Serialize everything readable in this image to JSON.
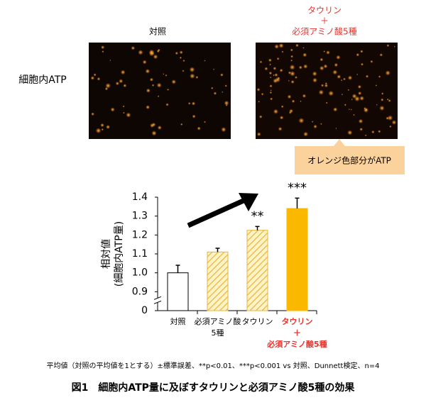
{
  "panel_label": "細胞内ATP",
  "images": [
    {
      "title": [
        "対照"
      ]
    },
    {
      "title": [
        "タウリン",
        "＋",
        "必須アミノ酸5種"
      ]
    }
  ],
  "callout": "オレンジ色部分がATP",
  "chart_data": {
    "type": "bar",
    "ylabel": [
      "相対値",
      "(細胞内ATP量)"
    ],
    "categories": [
      [
        "対照"
      ],
      [
        "必須アミノ酸",
        "5種"
      ],
      [
        "タウリン"
      ],
      [
        "タウリン",
        "＋",
        "必須アミノ酸5種"
      ]
    ],
    "values": [
      1.0,
      1.11,
      1.225,
      1.34
    ],
    "errors": [
      0.04,
      0.02,
      0.02,
      0.055
    ],
    "significance": [
      null,
      null,
      "**",
      "***"
    ],
    "colors": [
      "#ffffff",
      "#f6c64e",
      "#f6c64e",
      "#fbb800"
    ],
    "hatched": [
      false,
      true,
      true,
      false
    ],
    "ylim": [
      0.8,
      1.4
    ],
    "yticks": [
      0,
      0.9,
      1.0,
      1.1,
      1.2,
      1.3,
      1.4
    ],
    "yticks_labels": [
      "0",
      "0.9",
      "1.0",
      "1.1",
      "1.2",
      "1.3",
      "1.4"
    ],
    "axis_break": true
  },
  "note": "平均値（対照の平均値を1とする）±標準誤差、**p<0.01、***p<0.001 vs 対照、Dunnett検定、n=4",
  "caption": "図1　細胞内ATP量に及ぼすタウリンと必須アミノ酸5種の効果"
}
